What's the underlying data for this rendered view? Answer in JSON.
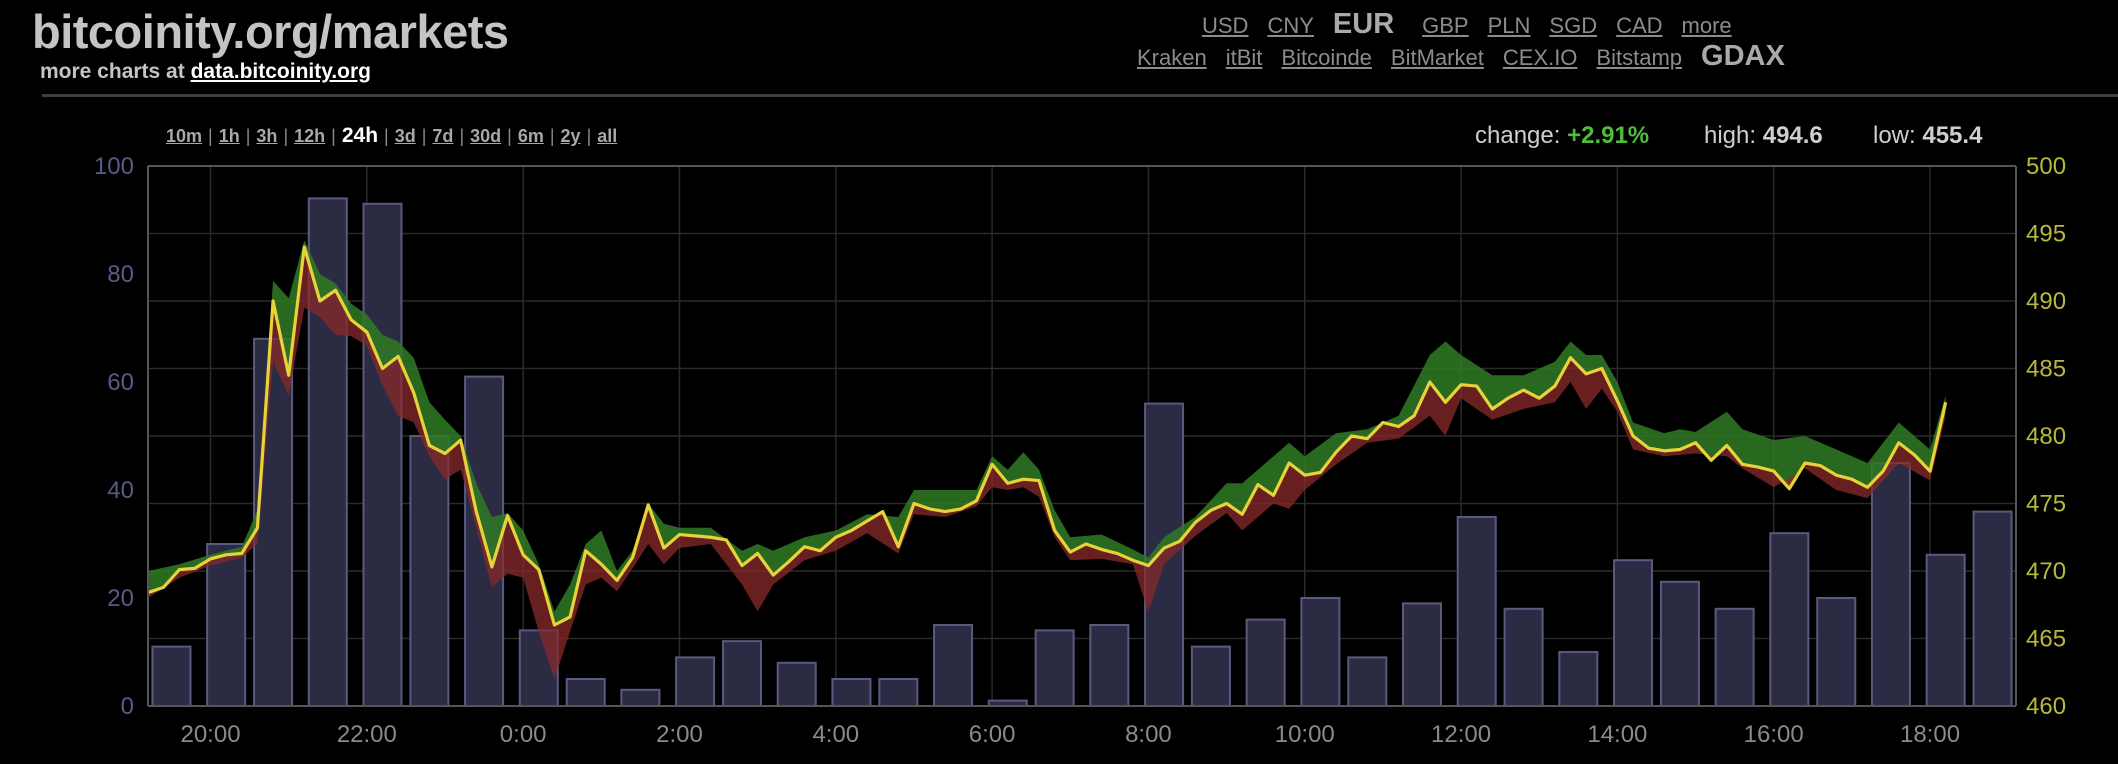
{
  "header": {
    "title": "bitcoinity.org/markets",
    "subtitle_prefix": "more charts at ",
    "subtitle_link": "data.bitcoinity.org"
  },
  "currencies": [
    {
      "label": "USD",
      "active": false
    },
    {
      "label": "CNY",
      "active": false
    },
    {
      "label": "EUR",
      "active": true
    },
    {
      "label": "GBP",
      "active": false
    },
    {
      "label": "PLN",
      "active": false
    },
    {
      "label": "SGD",
      "active": false
    },
    {
      "label": "CAD",
      "active": false
    },
    {
      "label": "more",
      "active": false
    }
  ],
  "exchanges": [
    {
      "label": "Kraken",
      "active": false
    },
    {
      "label": "itBit",
      "active": false
    },
    {
      "label": "Bitcoinde",
      "active": false
    },
    {
      "label": "BitMarket",
      "active": false
    },
    {
      "label": "CEX.IO",
      "active": false
    },
    {
      "label": "Bitstamp",
      "active": false
    },
    {
      "label": "GDAX",
      "active": true
    }
  ],
  "time_ranges": [
    {
      "label": "10m",
      "active": false
    },
    {
      "label": "1h",
      "active": false
    },
    {
      "label": "3h",
      "active": false
    },
    {
      "label": "12h",
      "active": false
    },
    {
      "label": "24h",
      "active": true
    },
    {
      "label": "3d",
      "active": false
    },
    {
      "label": "7d",
      "active": false
    },
    {
      "label": "30d",
      "active": false
    },
    {
      "label": "6m",
      "active": false
    },
    {
      "label": "2y",
      "active": false
    },
    {
      "label": "all",
      "active": false
    }
  ],
  "stats": {
    "change_label": "change: ",
    "change_value": "+2.91%",
    "high_label": "high: ",
    "high_value": "494.6",
    "low_label": "low: ",
    "low_value": "455.4"
  },
  "colors": {
    "price_line": "#e8d23a",
    "gain_area": "#2f7a24",
    "loss_area": "#8a2a2a",
    "volume_bar": "#2b2b44",
    "volume_bar_stroke": "#5a5a80",
    "grid": "#2a2a2a",
    "change_positive": "#4fbd3a"
  },
  "chart_data": {
    "type": "line",
    "y_left_ticks": [
      "0",
      "20",
      "40",
      "60",
      "80",
      "100"
    ],
    "y_left_range": [
      0,
      100
    ],
    "y_right_ticks": [
      "460",
      "465",
      "470",
      "475",
      "480",
      "485",
      "490",
      "495",
      "500"
    ],
    "y_right_range": [
      460,
      500
    ],
    "x_ticks": [
      "20:00",
      "22:00",
      "0:00",
      "2:00",
      "4:00",
      "6:00",
      "8:00",
      "10:00",
      "12:00",
      "14:00",
      "16:00",
      "18:00"
    ],
    "x_range_hours": [
      19.2,
      43.1
    ],
    "volume": [
      {
        "t": 19.5,
        "v": 11
      },
      {
        "t": 20.2,
        "v": 30
      },
      {
        "t": 20.8,
        "v": 68
      },
      {
        "t": 21.5,
        "v": 94
      },
      {
        "t": 22.2,
        "v": 93
      },
      {
        "t": 22.8,
        "v": 50
      },
      {
        "t": 23.5,
        "v": 61
      },
      {
        "t": 24.2,
        "v": 14
      },
      {
        "t": 24.8,
        "v": 5
      },
      {
        "t": 25.5,
        "v": 3
      },
      {
        "t": 26.2,
        "v": 9
      },
      {
        "t": 26.8,
        "v": 12
      },
      {
        "t": 27.5,
        "v": 8
      },
      {
        "t": 28.2,
        "v": 5
      },
      {
        "t": 28.8,
        "v": 5
      },
      {
        "t": 29.5,
        "v": 15
      },
      {
        "t": 30.2,
        "v": 1
      },
      {
        "t": 30.8,
        "v": 14
      },
      {
        "t": 31.5,
        "v": 15
      },
      {
        "t": 32.2,
        "v": 56
      },
      {
        "t": 32.8,
        "v": 11
      },
      {
        "t": 33.5,
        "v": 16
      },
      {
        "t": 34.2,
        "v": 20
      },
      {
        "t": 34.8,
        "v": 9
      },
      {
        "t": 35.5,
        "v": 19
      },
      {
        "t": 36.2,
        "v": 35
      },
      {
        "t": 36.8,
        "v": 18
      },
      {
        "t": 37.5,
        "v": 10
      },
      {
        "t": 38.2,
        "v": 27
      },
      {
        "t": 38.8,
        "v": 23
      },
      {
        "t": 39.5,
        "v": 18
      },
      {
        "t": 40.2,
        "v": 32
      },
      {
        "t": 40.8,
        "v": 20
      },
      {
        "t": 41.5,
        "v": 45
      },
      {
        "t": 42.2,
        "v": 28
      },
      {
        "t": 42.8,
        "v": 36
      }
    ],
    "price": [
      [
        19.2,
        468.4
      ],
      [
        19.4,
        468.8
      ],
      [
        19.6,
        470.1
      ],
      [
        19.8,
        470.2
      ],
      [
        20.0,
        470.9
      ],
      [
        20.2,
        471.2
      ],
      [
        20.4,
        471.3
      ],
      [
        20.6,
        473.2
      ],
      [
        20.8,
        490.0
      ],
      [
        21.0,
        484.5
      ],
      [
        21.2,
        494.0
      ],
      [
        21.4,
        490.0
      ],
      [
        21.6,
        490.8
      ],
      [
        21.8,
        488.6
      ],
      [
        22.0,
        487.7
      ],
      [
        22.2,
        485.0
      ],
      [
        22.4,
        485.9
      ],
      [
        22.6,
        483.2
      ],
      [
        22.8,
        479.3
      ],
      [
        23.0,
        478.7
      ],
      [
        23.2,
        479.7
      ],
      [
        23.4,
        474.4
      ],
      [
        23.6,
        470.3
      ],
      [
        23.8,
        474.1
      ],
      [
        24.0,
        471.2
      ],
      [
        24.2,
        470.1
      ],
      [
        24.4,
        466.0
      ],
      [
        24.6,
        466.6
      ],
      [
        24.8,
        471.5
      ],
      [
        25.0,
        470.5
      ],
      [
        25.2,
        469.3
      ],
      [
        25.4,
        471.0
      ],
      [
        25.6,
        474.9
      ],
      [
        25.8,
        471.7
      ],
      [
        26.0,
        472.7
      ],
      [
        26.2,
        472.6
      ],
      [
        26.4,
        472.5
      ],
      [
        26.6,
        472.3
      ],
      [
        26.8,
        470.4
      ],
      [
        27.0,
        471.3
      ],
      [
        27.2,
        469.7
      ],
      [
        27.4,
        470.7
      ],
      [
        27.6,
        471.8
      ],
      [
        27.8,
        471.5
      ],
      [
        28.0,
        472.5
      ],
      [
        28.2,
        473.0
      ],
      [
        28.4,
        473.7
      ],
      [
        28.6,
        474.4
      ],
      [
        28.8,
        471.8
      ],
      [
        29.0,
        475.0
      ],
      [
        29.2,
        474.6
      ],
      [
        29.4,
        474.4
      ],
      [
        29.6,
        474.6
      ],
      [
        29.8,
        475.2
      ],
      [
        30.0,
        477.9
      ],
      [
        30.2,
        476.5
      ],
      [
        30.4,
        476.8
      ],
      [
        30.6,
        476.7
      ],
      [
        30.8,
        473.0
      ],
      [
        31.0,
        471.4
      ],
      [
        31.2,
        472.0
      ],
      [
        31.4,
        471.6
      ],
      [
        31.6,
        471.3
      ],
      [
        31.8,
        470.8
      ],
      [
        32.0,
        470.4
      ],
      [
        32.2,
        471.7
      ],
      [
        32.4,
        472.2
      ],
      [
        32.6,
        473.6
      ],
      [
        32.8,
        474.5
      ],
      [
        33.0,
        475.0
      ],
      [
        33.2,
        474.2
      ],
      [
        33.4,
        476.4
      ],
      [
        33.6,
        475.6
      ],
      [
        33.8,
        478.0
      ],
      [
        34.0,
        477.1
      ],
      [
        34.2,
        477.3
      ],
      [
        34.4,
        478.8
      ],
      [
        34.6,
        480.0
      ],
      [
        34.8,
        479.8
      ],
      [
        35.0,
        481.0
      ],
      [
        35.2,
        480.7
      ],
      [
        35.4,
        481.5
      ],
      [
        35.6,
        484.0
      ],
      [
        35.8,
        482.5
      ],
      [
        36.0,
        483.8
      ],
      [
        36.2,
        483.7
      ],
      [
        36.4,
        482.0
      ],
      [
        36.6,
        482.8
      ],
      [
        36.8,
        483.4
      ],
      [
        37.0,
        482.8
      ],
      [
        37.2,
        483.7
      ],
      [
        37.4,
        485.8
      ],
      [
        37.6,
        484.6
      ],
      [
        37.8,
        485.0
      ],
      [
        38.0,
        482.6
      ],
      [
        38.2,
        480.0
      ],
      [
        38.4,
        479.1
      ],
      [
        38.6,
        478.9
      ],
      [
        38.8,
        479.0
      ],
      [
        39.0,
        479.5
      ],
      [
        39.2,
        478.2
      ],
      [
        39.4,
        479.3
      ],
      [
        39.6,
        477.9
      ],
      [
        39.8,
        477.7
      ],
      [
        40.0,
        477.4
      ],
      [
        40.2,
        476.1
      ],
      [
        40.4,
        478.0
      ],
      [
        40.6,
        477.8
      ],
      [
        40.8,
        477.1
      ],
      [
        41.0,
        476.8
      ],
      [
        41.2,
        476.2
      ],
      [
        41.4,
        477.4
      ],
      [
        41.6,
        479.5
      ],
      [
        41.8,
        478.6
      ],
      [
        42.0,
        477.4
      ],
      [
        42.2,
        482.5
      ]
    ],
    "band": [
      [
        19.2,
        470.0,
        468.0
      ],
      [
        19.6,
        470.5,
        469.5
      ],
      [
        20.0,
        471.2,
        470.4
      ],
      [
        20.4,
        471.8,
        471.0
      ],
      [
        20.6,
        474.5,
        472.0
      ],
      [
        20.8,
        491.5,
        485.5
      ],
      [
        21.0,
        490.2,
        483.0
      ],
      [
        21.2,
        494.5,
        489.5
      ],
      [
        21.4,
        492.0,
        488.8
      ],
      [
        21.6,
        491.3,
        487.5
      ],
      [
        21.8,
        489.8,
        487.4
      ],
      [
        22.0,
        489.0,
        486.7
      ],
      [
        22.2,
        487.5,
        483.7
      ],
      [
        22.4,
        487.0,
        481.5
      ],
      [
        22.6,
        485.8,
        481.0
      ],
      [
        22.8,
        482.5,
        478.5
      ],
      [
        23.0,
        481.2,
        476.8
      ],
      [
        23.2,
        480.0,
        477.5
      ],
      [
        23.4,
        476.5,
        473.2
      ],
      [
        23.6,
        474.0,
        468.8
      ],
      [
        23.8,
        474.3,
        469.8
      ],
      [
        24.0,
        473.0,
        469.5
      ],
      [
        24.2,
        470.5,
        465.5
      ],
      [
        24.4,
        467.0,
        462.0
      ],
      [
        24.6,
        469.0,
        465.5
      ],
      [
        24.8,
        472.0,
        469.0
      ],
      [
        25.0,
        473.0,
        469.5
      ],
      [
        25.2,
        470.0,
        468.5
      ],
      [
        25.4,
        471.5,
        470.2
      ],
      [
        25.6,
        475.0,
        472.0
      ],
      [
        25.8,
        473.5,
        470.5
      ],
      [
        26.0,
        473.2,
        471.7
      ],
      [
        26.4,
        473.2,
        472.0
      ],
      [
        26.8,
        471.5,
        469.0
      ],
      [
        27.0,
        472.0,
        467.0
      ],
      [
        27.2,
        471.5,
        469.0
      ],
      [
        27.6,
        472.5,
        470.8
      ],
      [
        28.0,
        473.0,
        471.5
      ],
      [
        28.4,
        474.2,
        472.8
      ],
      [
        28.8,
        474.0,
        471.3
      ],
      [
        29.0,
        476.0,
        474.2
      ],
      [
        29.4,
        476.0,
        474.0
      ],
      [
        29.8,
        476.0,
        474.8
      ],
      [
        30.0,
        478.5,
        476.2
      ],
      [
        30.2,
        477.5,
        476.0
      ],
      [
        30.4,
        478.8,
        476.2
      ],
      [
        30.6,
        477.5,
        475.5
      ],
      [
        30.8,
        474.5,
        472.5
      ],
      [
        31.0,
        472.5,
        470.8
      ],
      [
        31.4,
        472.7,
        470.9
      ],
      [
        31.8,
        471.6,
        470.5
      ],
      [
        32.0,
        471.0,
        467.0
      ],
      [
        32.2,
        472.5,
        470.5
      ],
      [
        32.6,
        474.0,
        472.6
      ],
      [
        33.0,
        476.5,
        474.3
      ],
      [
        33.2,
        476.5,
        473.0
      ],
      [
        33.6,
        478.5,
        475.0
      ],
      [
        33.8,
        479.5,
        474.6
      ],
      [
        34.0,
        478.5,
        476.0
      ],
      [
        34.4,
        480.2,
        477.9
      ],
      [
        34.8,
        480.5,
        479.5
      ],
      [
        35.2,
        481.5,
        479.8
      ],
      [
        35.6,
        486.0,
        481.5
      ],
      [
        35.8,
        487.0,
        480.0
      ],
      [
        36.0,
        486.0,
        482.8
      ],
      [
        36.4,
        484.5,
        481.2
      ],
      [
        36.8,
        484.5,
        482.0
      ],
      [
        37.2,
        485.5,
        482.5
      ],
      [
        37.4,
        487.0,
        484.0
      ],
      [
        37.6,
        486.0,
        482.0
      ],
      [
        37.8,
        486.0,
        483.5
      ],
      [
        38.0,
        484.0,
        481.8
      ],
      [
        38.2,
        481.0,
        479.0
      ],
      [
        38.6,
        480.2,
        478.5
      ],
      [
        38.8,
        480.5,
        478.6
      ],
      [
        39.0,
        480.3,
        478.7
      ],
      [
        39.4,
        481.8,
        478.5
      ],
      [
        39.6,
        480.5,
        477.6
      ],
      [
        40.0,
        479.7,
        476.2
      ],
      [
        40.4,
        480.0,
        477.6
      ],
      [
        40.8,
        479.0,
        476.0
      ],
      [
        41.2,
        478.0,
        475.4
      ],
      [
        41.6,
        481.0,
        478.0
      ],
      [
        42.0,
        479.0,
        476.7
      ],
      [
        42.2,
        483.0,
        481.5
      ]
    ]
  }
}
